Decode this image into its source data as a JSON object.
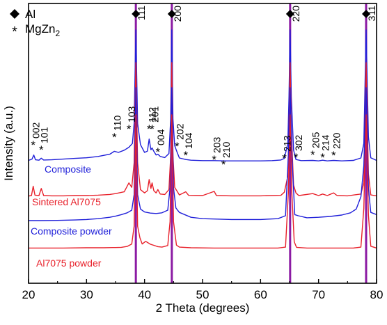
{
  "chart_data": {
    "type": "line",
    "xlabel": "2 Theta (degrees)",
    "ylabel": "Intensity (a.u.)",
    "xlim": [
      20,
      80
    ],
    "x_ticks": [
      20,
      30,
      40,
      50,
      60,
      70,
      80
    ],
    "y_ticks_shown": false,
    "grid": false,
    "legend": {
      "position": "top-left",
      "entries": [
        {
          "marker": "diamond",
          "label": "Al"
        },
        {
          "marker": "asterisk",
          "label": "MgZn2"
        }
      ]
    },
    "colors": {
      "red": "#e8202a",
      "blue": "#1f1fd9",
      "purple": "#8b1aa3",
      "axis": "#000000"
    },
    "al_reference_lines": [
      38.5,
      44.7,
      65.1,
      78.2
    ],
    "al_peak_labels": [
      {
        "x": 38.5,
        "label": "111"
      },
      {
        "x": 44.7,
        "label": "200"
      },
      {
        "x": 65.1,
        "label": "220"
      },
      {
        "x": 78.2,
        "label": "311"
      }
    ],
    "mgzn2_peak_labels": [
      {
        "x": 20.8,
        "label": "002"
      },
      {
        "x": 22.2,
        "label": "101"
      },
      {
        "x": 34.8,
        "label": "110"
      },
      {
        "x": 37.3,
        "label": "103"
      },
      {
        "x": 40.8,
        "label": "112"
      },
      {
        "x": 41.3,
        "label": "201"
      },
      {
        "x": 42.3,
        "label": "004"
      },
      {
        "x": 45.6,
        "label": "202"
      },
      {
        "x": 47.1,
        "label": "104"
      },
      {
        "x": 52.0,
        "label": "203"
      },
      {
        "x": 53.6,
        "label": "210"
      },
      {
        "x": 64.1,
        "label": "213"
      },
      {
        "x": 66.1,
        "label": "302"
      },
      {
        "x": 69.0,
        "label": "205"
      },
      {
        "x": 70.7,
        "label": "214"
      },
      {
        "x": 72.6,
        "label": "220"
      }
    ],
    "series": [
      {
        "name": "Composite",
        "color": "#1f1fd9",
        "x": [
          20,
          20.6,
          20.9,
          21.2,
          21.8,
          22.2,
          22.6,
          24,
          26,
          28,
          30,
          32,
          34,
          34.8,
          35.5,
          36.5,
          37.3,
          37.9,
          38.2,
          38.5,
          38.8,
          39.3,
          40,
          40.5,
          40.8,
          41.1,
          41.3,
          41.6,
          42,
          42.3,
          42.7,
          43.5,
          44.2,
          44.5,
          44.7,
          44.9,
          45.2,
          45.6,
          46,
          47.1,
          48,
          50,
          52,
          54,
          56,
          58,
          60,
          62,
          63.5,
          64.1,
          64.7,
          64.9,
          65.1,
          65.3,
          65.7,
          66.1,
          67,
          69,
          70,
          70.7,
          71.5,
          72.6,
          74,
          76,
          77.3,
          77.8,
          78.2,
          78.6,
          79,
          80
        ],
        "y": [
          1.4,
          2.0,
          3.8,
          1.7,
          1.5,
          2.4,
          1.6,
          1.7,
          2.0,
          2.3,
          2.6,
          3.2,
          4.2,
          5.5,
          5.0,
          6.0,
          7.3,
          9.0,
          18,
          60,
          18,
          8.5,
          5.0,
          5.6,
          11.0,
          6.2,
          7.0,
          5.5,
          3.8,
          4.2,
          3.2,
          2.7,
          4.5,
          20,
          60,
          20,
          8.0,
          5.2,
          2.5,
          1.8,
          1.5,
          1.3,
          1.3,
          1.2,
          1.2,
          1.2,
          1.2,
          1.3,
          1.6,
          2.3,
          9.0,
          30,
          60,
          30,
          6.0,
          1.8,
          1.3,
          1.4,
          1.2,
          1.5,
          1.2,
          1.4,
          1.2,
          1.4,
          2.5,
          9.0,
          60,
          12,
          2.6,
          1.4
        ]
      },
      {
        "name": "Sintered Al7075",
        "color": "#e8202a",
        "x": [
          20,
          20.5,
          20.8,
          21.1,
          21.8,
          22.2,
          22.6,
          24,
          26,
          28,
          30,
          32,
          34,
          35,
          36.5,
          37.3,
          37.8,
          38.2,
          38.5,
          38.8,
          39.3,
          40,
          40.5,
          40.8,
          41.1,
          41.3,
          41.6,
          42,
          42.3,
          42.7,
          43.5,
          44.2,
          44.5,
          44.7,
          44.9,
          45.2,
          46,
          47.1,
          47.6,
          50,
          52,
          52.4,
          55,
          60,
          63.5,
          64.1,
          64.7,
          64.9,
          65.1,
          65.3,
          65.7,
          66.1,
          66.6,
          69,
          70,
          70.7,
          71.5,
          72.6,
          73.2,
          75,
          77.3,
          77.8,
          78.2,
          78.6,
          79,
          80
        ],
        "y": [
          0.1,
          0.3,
          4.5,
          0.5,
          0.3,
          3.5,
          0.3,
          0.2,
          0.2,
          0.3,
          0.3,
          0.5,
          0.8,
          1.2,
          2.0,
          6.0,
          4.0,
          15,
          60,
          15,
          3.0,
          1.5,
          2.5,
          7.5,
          3.5,
          6.0,
          2.5,
          1.5,
          3.0,
          1.0,
          0.8,
          3.0,
          18,
          60,
          18,
          4.0,
          0.6,
          2.0,
          0.4,
          0.3,
          2.2,
          0.3,
          0.2,
          0.2,
          0.4,
          1.8,
          9.0,
          30,
          60,
          30,
          5.0,
          1.5,
          0.3,
          1.2,
          0.3,
          1.0,
          0.3,
          1.5,
          0.3,
          0.2,
          1.0,
          6.0,
          60,
          10,
          0.6,
          0.2
        ]
      },
      {
        "name": "Composite powder",
        "color": "#1f1fd9",
        "x": [
          20,
          22,
          25,
          28,
          30,
          32,
          34,
          35,
          36,
          37,
          37.8,
          38.2,
          38.5,
          38.8,
          39.3,
          40,
          41,
          42,
          43,
          44,
          44.4,
          44.7,
          45,
          45.4,
          46,
          48,
          50,
          55,
          60,
          63,
          64.3,
          64.8,
          65.1,
          65.4,
          65.9,
          66.5,
          68,
          70,
          72,
          74,
          75.5,
          76.5,
          77.3,
          77.8,
          78.2,
          78.6,
          79,
          80
        ],
        "y": [
          0.3,
          0.3,
          0.4,
          0.6,
          0.8,
          1.2,
          1.8,
          2.3,
          3.0,
          3.8,
          5.0,
          12,
          60,
          12,
          5.5,
          4.2,
          3.7,
          3.5,
          3.8,
          5.0,
          15,
          60,
          15,
          6.0,
          4.0,
          1.8,
          1.2,
          0.8,
          0.8,
          1.2,
          2.5,
          30,
          60,
          30,
          3.0,
          2.5,
          1.6,
          1.8,
          2.2,
          2.8,
          3.8,
          5.5,
          11.0,
          25,
          60,
          15,
          4.0,
          3.0
        ]
      },
      {
        "name": "Al7075 powder",
        "color": "#e8202a",
        "x": [
          20,
          22,
          26,
          30,
          33,
          34.5,
          35,
          36,
          37,
          37.8,
          38.2,
          38.5,
          38.8,
          39.2,
          39.6,
          40.2,
          41,
          41.6,
          42.3,
          43,
          44,
          44.4,
          44.7,
          45,
          45.5,
          46,
          48,
          52,
          56,
          60,
          63,
          64.3,
          64.8,
          65.1,
          65.4,
          65.8,
          66.2,
          68,
          72,
          76,
          77.3,
          77.8,
          78.2,
          78.6,
          79,
          80
        ],
        "y": [
          0.2,
          0.2,
          0.2,
          0.3,
          0.3,
          0.4,
          0.4,
          0.5,
          0.9,
          2.0,
          10,
          60,
          10,
          4.8,
          2.0,
          3.2,
          1.9,
          1.4,
          0.8,
          0.6,
          1.3,
          12,
          60,
          12,
          1.5,
          0.6,
          0.3,
          0.2,
          0.2,
          0.2,
          0.2,
          0.6,
          25,
          60,
          25,
          3.0,
          0.5,
          0.2,
          0.2,
          0.2,
          0.6,
          18,
          60,
          15,
          1.0,
          0.2
        ]
      }
    ]
  }
}
